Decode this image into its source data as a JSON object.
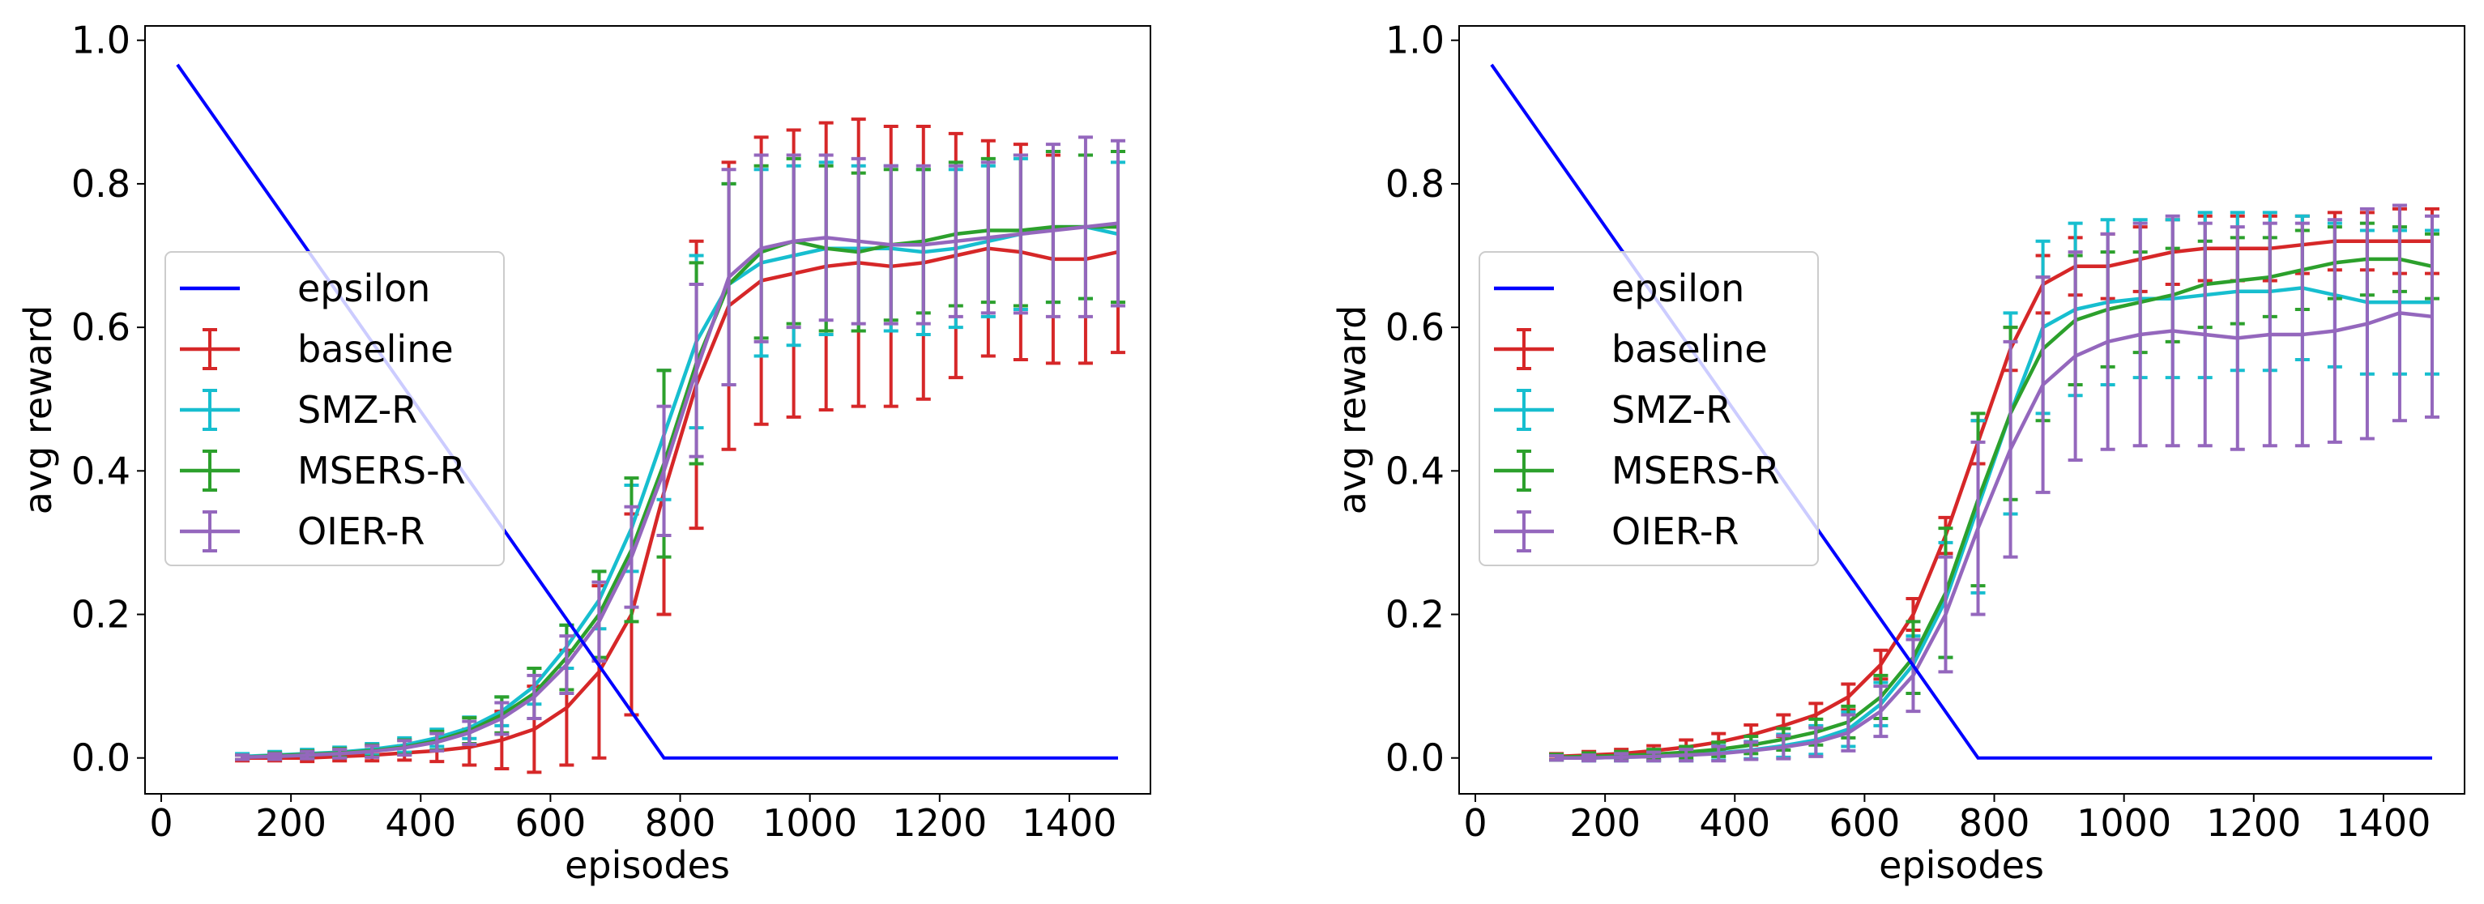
{
  "chart_data": [
    {
      "type": "line",
      "xlabel": "episodes",
      "ylabel": "avg reward",
      "xlim": [
        -25,
        1525
      ],
      "ylim": [
        -0.05,
        1.02
      ],
      "xticks": [
        0,
        200,
        400,
        600,
        800,
        1000,
        1200,
        1400
      ],
      "xtick_labels": [
        "0",
        "200",
        "400",
        "600",
        "800",
        "1000",
        "1200",
        "1400"
      ],
      "yticks": [
        0.0,
        0.2,
        0.4,
        0.6,
        0.8,
        1.0
      ],
      "ytick_labels": [
        "0.0",
        "0.2",
        "0.4",
        "0.6",
        "0.8",
        "1.0"
      ],
      "legend_position": "center-left",
      "x": [
        125,
        175,
        225,
        275,
        325,
        375,
        425,
        475,
        525,
        575,
        625,
        675,
        725,
        775,
        825,
        875,
        925,
        975,
        1025,
        1075,
        1125,
        1175,
        1225,
        1275,
        1325,
        1375,
        1425,
        1475
      ],
      "epsilon": {
        "name": "epsilon",
        "color": "#0000ff",
        "x": [
          25,
          775,
          1475
        ],
        "values": [
          0.966,
          0.0,
          0.0
        ]
      },
      "series": [
        {
          "name": "baseline",
          "color": "#d62728",
          "values": [
            0.0,
            0.0,
            0.0,
            0.002,
            0.004,
            0.007,
            0.01,
            0.015,
            0.025,
            0.04,
            0.07,
            0.12,
            0.2,
            0.37,
            0.52,
            0.63,
            0.665,
            0.675,
            0.685,
            0.69,
            0.685,
            0.69,
            0.7,
            0.71,
            0.705,
            0.695,
            0.695,
            0.705
          ],
          "errors": [
            0.004,
            0.004,
            0.005,
            0.006,
            0.008,
            0.01,
            0.015,
            0.025,
            0.04,
            0.06,
            0.08,
            0.12,
            0.14,
            0.17,
            0.2,
            0.2,
            0.2,
            0.2,
            0.2,
            0.2,
            0.195,
            0.19,
            0.17,
            0.15,
            0.15,
            0.145,
            0.145,
            0.14
          ]
        },
        {
          "name": "SMZ-R",
          "color": "#17becf",
          "values": [
            0.002,
            0.004,
            0.006,
            0.008,
            0.012,
            0.018,
            0.028,
            0.042,
            0.065,
            0.1,
            0.155,
            0.22,
            0.32,
            0.45,
            0.58,
            0.66,
            0.69,
            0.7,
            0.71,
            0.71,
            0.71,
            0.705,
            0.71,
            0.72,
            0.73,
            0.74,
            0.74,
            0.73
          ],
          "errors": [
            0.004,
            0.005,
            0.006,
            0.007,
            0.008,
            0.01,
            0.012,
            0.015,
            0.02,
            0.025,
            0.03,
            0.04,
            0.06,
            0.09,
            0.12,
            0.14,
            0.13,
            0.125,
            0.12,
            0.115,
            0.115,
            0.115,
            0.11,
            0.105,
            0.105,
            0.105,
            0.1,
            0.1
          ]
        },
        {
          "name": "MSERS-R",
          "color": "#2ca02c",
          "values": [
            0.001,
            0.003,
            0.005,
            0.007,
            0.01,
            0.015,
            0.024,
            0.038,
            0.06,
            0.09,
            0.14,
            0.2,
            0.29,
            0.41,
            0.55,
            0.66,
            0.705,
            0.72,
            0.71,
            0.705,
            0.715,
            0.72,
            0.73,
            0.735,
            0.735,
            0.74,
            0.74,
            0.74
          ],
          "errors": [
            0.003,
            0.004,
            0.005,
            0.006,
            0.008,
            0.01,
            0.013,
            0.018,
            0.025,
            0.035,
            0.045,
            0.06,
            0.1,
            0.13,
            0.14,
            0.14,
            0.12,
            0.115,
            0.115,
            0.11,
            0.105,
            0.1,
            0.1,
            0.1,
            0.105,
            0.105,
            0.1,
            0.105
          ]
        },
        {
          "name": "OIER-R",
          "color": "#9467bd",
          "values": [
            0.001,
            0.002,
            0.004,
            0.006,
            0.009,
            0.014,
            0.022,
            0.035,
            0.055,
            0.085,
            0.13,
            0.19,
            0.28,
            0.4,
            0.54,
            0.67,
            0.71,
            0.72,
            0.725,
            0.72,
            0.715,
            0.715,
            0.72,
            0.725,
            0.73,
            0.735,
            0.74,
            0.745
          ],
          "errors": [
            0.003,
            0.004,
            0.005,
            0.006,
            0.008,
            0.01,
            0.012,
            0.016,
            0.022,
            0.03,
            0.04,
            0.055,
            0.07,
            0.09,
            0.12,
            0.15,
            0.13,
            0.12,
            0.115,
            0.115,
            0.11,
            0.11,
            0.105,
            0.105,
            0.11,
            0.12,
            0.125,
            0.115
          ]
        }
      ]
    },
    {
      "type": "line",
      "xlabel": "episodes",
      "ylabel": "avg reward",
      "xlim": [
        -25,
        1525
      ],
      "ylim": [
        -0.05,
        1.02
      ],
      "xticks": [
        0,
        200,
        400,
        600,
        800,
        1000,
        1200,
        1400
      ],
      "xtick_labels": [
        "0",
        "200",
        "400",
        "600",
        "800",
        "1000",
        "1200",
        "1400"
      ],
      "yticks": [
        0.0,
        0.2,
        0.4,
        0.6,
        0.8,
        1.0
      ],
      "ytick_labels": [
        "0.0",
        "0.2",
        "0.4",
        "0.6",
        "0.8",
        "1.0"
      ],
      "legend_position": "center-left",
      "x": [
        125,
        175,
        225,
        275,
        325,
        375,
        425,
        475,
        525,
        575,
        625,
        675,
        725,
        775,
        825,
        875,
        925,
        975,
        1025,
        1075,
        1125,
        1175,
        1225,
        1275,
        1325,
        1375,
        1425,
        1475
      ],
      "epsilon": {
        "name": "epsilon",
        "color": "#0000ff",
        "x": [
          25,
          775,
          1475
        ],
        "values": [
          0.966,
          0.0,
          0.0
        ]
      },
      "series": [
        {
          "name": "baseline",
          "color": "#d62728",
          "values": [
            0.002,
            0.004,
            0.006,
            0.01,
            0.015,
            0.022,
            0.032,
            0.045,
            0.06,
            0.085,
            0.13,
            0.2,
            0.31,
            0.44,
            0.57,
            0.66,
            0.685,
            0.685,
            0.695,
            0.705,
            0.71,
            0.71,
            0.71,
            0.715,
            0.72,
            0.72,
            0.72,
            0.72
          ],
          "errors": [
            0.004,
            0.005,
            0.006,
            0.007,
            0.01,
            0.012,
            0.014,
            0.015,
            0.016,
            0.018,
            0.02,
            0.022,
            0.025,
            0.03,
            0.03,
            0.04,
            0.04,
            0.045,
            0.045,
            0.045,
            0.045,
            0.045,
            0.045,
            0.04,
            0.04,
            0.04,
            0.045,
            0.045
          ]
        },
        {
          "name": "SMZ-R",
          "color": "#17becf",
          "values": [
            0.0,
            0.0,
            0.001,
            0.002,
            0.004,
            0.007,
            0.011,
            0.017,
            0.025,
            0.04,
            0.075,
            0.13,
            0.22,
            0.35,
            0.48,
            0.6,
            0.625,
            0.635,
            0.64,
            0.64,
            0.645,
            0.65,
            0.65,
            0.655,
            0.645,
            0.635,
            0.635,
            0.635
          ],
          "errors": [
            0.003,
            0.004,
            0.005,
            0.006,
            0.008,
            0.01,
            0.012,
            0.016,
            0.02,
            0.024,
            0.03,
            0.04,
            0.08,
            0.12,
            0.14,
            0.12,
            0.12,
            0.115,
            0.11,
            0.11,
            0.115,
            0.11,
            0.11,
            0.1,
            0.1,
            0.1,
            0.1,
            0.1
          ]
        },
        {
          "name": "MSERS-R",
          "color": "#2ca02c",
          "values": [
            0.001,
            0.002,
            0.003,
            0.005,
            0.008,
            0.012,
            0.018,
            0.026,
            0.036,
            0.05,
            0.085,
            0.14,
            0.23,
            0.36,
            0.48,
            0.57,
            0.61,
            0.625,
            0.635,
            0.645,
            0.66,
            0.665,
            0.67,
            0.68,
            0.69,
            0.695,
            0.695,
            0.685
          ],
          "errors": [
            0.004,
            0.005,
            0.006,
            0.007,
            0.008,
            0.01,
            0.012,
            0.015,
            0.018,
            0.022,
            0.03,
            0.05,
            0.09,
            0.12,
            0.12,
            0.1,
            0.09,
            0.08,
            0.07,
            0.065,
            0.06,
            0.06,
            0.055,
            0.055,
            0.05,
            0.05,
            0.045,
            0.045
          ]
        },
        {
          "name": "OIER-R",
          "color": "#9467bd",
          "values": [
            0.0,
            0.0,
            0.001,
            0.002,
            0.004,
            0.006,
            0.01,
            0.015,
            0.022,
            0.035,
            0.065,
            0.115,
            0.2,
            0.32,
            0.43,
            0.52,
            0.56,
            0.58,
            0.59,
            0.595,
            0.59,
            0.585,
            0.59,
            0.59,
            0.595,
            0.605,
            0.62,
            0.615
          ],
          "errors": [
            0.003,
            0.004,
            0.005,
            0.006,
            0.008,
            0.01,
            0.012,
            0.016,
            0.02,
            0.025,
            0.035,
            0.05,
            0.08,
            0.12,
            0.15,
            0.15,
            0.145,
            0.15,
            0.155,
            0.16,
            0.155,
            0.155,
            0.155,
            0.155,
            0.155,
            0.16,
            0.15,
            0.14
          ]
        }
      ]
    }
  ]
}
